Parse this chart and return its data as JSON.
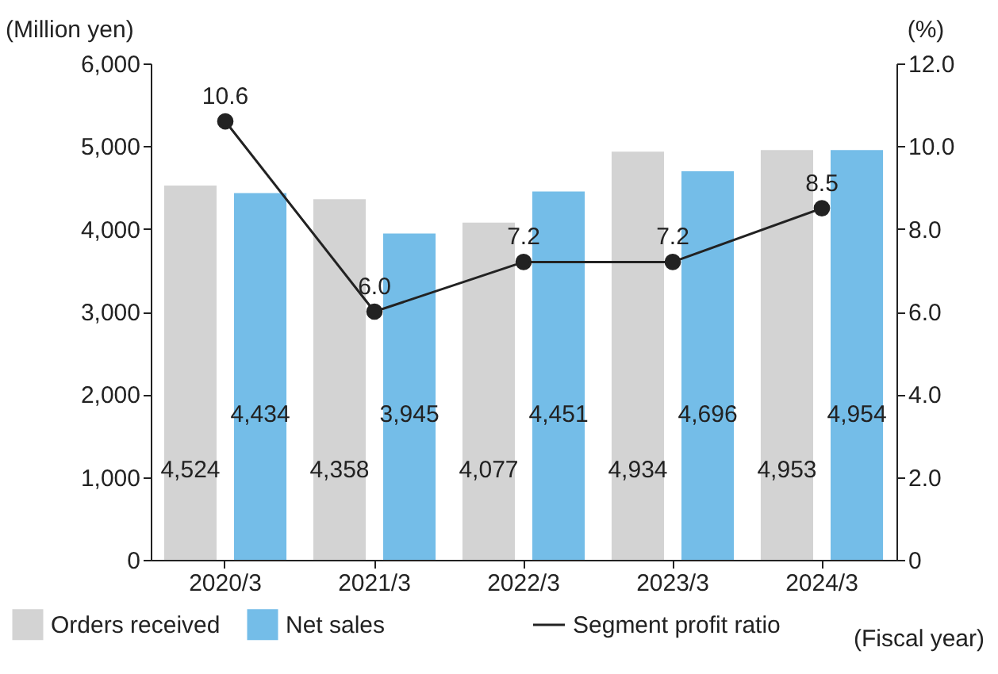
{
  "chart_data": {
    "type": "bar",
    "ylabel": "(Million yen)",
    "y2label": "(%)",
    "xlabel": "(Fiscal year)",
    "categories": [
      "2020/3",
      "2021/3",
      "2022/3",
      "2023/3",
      "2024/3"
    ],
    "series": [
      {
        "name": "Orders received",
        "type": "bar",
        "color": "#d3d3d3",
        "values": [
          4524,
          4358,
          4077,
          4934,
          4953
        ],
        "value_labels": [
          "4,524",
          "4,358",
          "4,077",
          "4,934",
          "4,953"
        ]
      },
      {
        "name": "Net sales",
        "type": "bar",
        "color": "#74bde8",
        "values": [
          4434,
          3945,
          4451,
          4696,
          4954
        ],
        "value_labels": [
          "4,434",
          "3,945",
          "4,451",
          "4,696",
          "4,954"
        ]
      },
      {
        "name": "Segment profit ratio",
        "type": "line",
        "axis": "y2",
        "color": "#222222",
        "marker": "circle",
        "values": [
          10.6,
          6.0,
          7.2,
          7.2,
          8.5
        ],
        "value_labels": [
          "10.6",
          "6.0",
          "7.2",
          "7.2",
          "8.5"
        ]
      }
    ],
    "ylim": [
      0,
      6000
    ],
    "yticks": [
      {
        "value": 0,
        "label": "0"
      },
      {
        "value": 1000,
        "label": "1,000"
      },
      {
        "value": 2000,
        "label": "2,000"
      },
      {
        "value": 3000,
        "label": "3,000"
      },
      {
        "value": 4000,
        "label": "4,000"
      },
      {
        "value": 5000,
        "label": "5,000"
      },
      {
        "value": 6000,
        "label": "6,000"
      }
    ],
    "y2lim": [
      0,
      12
    ],
    "y2ticks": [
      {
        "value": 0,
        "label": "0"
      },
      {
        "value": 2,
        "label": "2.0"
      },
      {
        "value": 4,
        "label": "4.0"
      },
      {
        "value": 6,
        "label": "6.0"
      },
      {
        "value": 8,
        "label": "8.0"
      },
      {
        "value": 10,
        "label": "10.0"
      },
      {
        "value": 12,
        "label": "12.0"
      }
    ],
    "grid": false,
    "legend": "bottom"
  }
}
